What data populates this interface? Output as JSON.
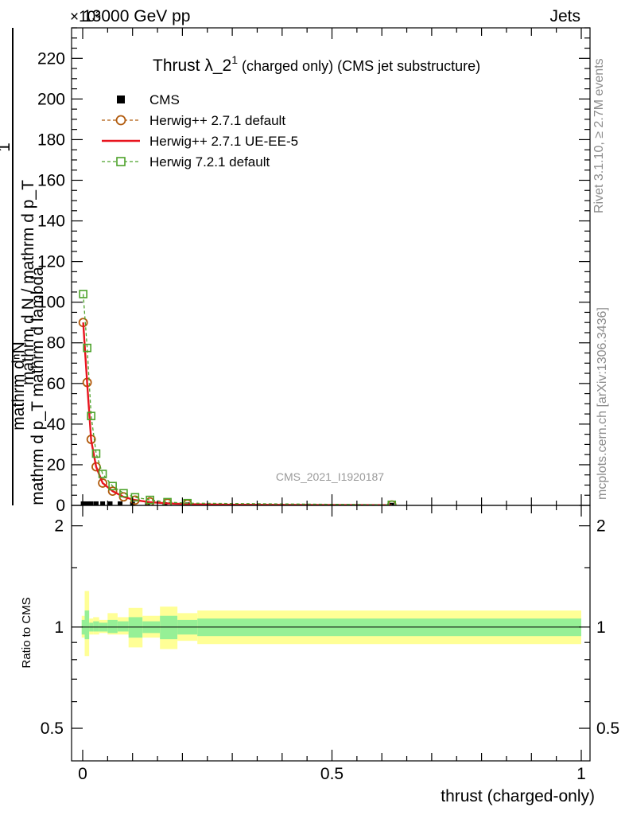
{
  "header": {
    "left": "13000 GeV pp",
    "right": "Jets",
    "multiplier": "×10³"
  },
  "side_labels": {
    "rivet": "Rivet 3.1.10, ≥ 2.7M events",
    "mcplots": "mcplots.cern.ch [arXiv:1306.3436]"
  },
  "chart_data": [
    {
      "type": "line",
      "panel": "main",
      "title": "Thrust λ_2¹ (charged only) (CMS jet substructure)",
      "title_main": "Thrust λ_2",
      "title_sup": "1",
      "title_rest": " (charged only) (CMS jet substructure)",
      "ylabel_top": "1",
      "ylabel_num": "mathrm dⁿN",
      "ylabel_num_sup": "2",
      "ylabel_num_line": "mathrm d p_T mathrm d lambda",
      "ylabel_den": "mathrm d N / mathrm d p_T",
      "watermark": "CMS_2021_I1920187",
      "xlim": [
        0,
        1
      ],
      "ylim": [
        0,
        235
      ],
      "y_ticks": [
        0,
        20,
        40,
        60,
        80,
        100,
        120,
        140,
        160,
        180,
        200,
        220
      ],
      "legend_position": "top-left",
      "legend": [
        {
          "label": "CMS",
          "marker": "square-filled",
          "color": "#000000"
        },
        {
          "label": "Herwig++ 2.7.1 default",
          "marker": "circle-open",
          "color": "#b15a0c",
          "dash": true
        },
        {
          "label": "Herwig++ 2.7.1 UE-EE-5",
          "marker": "none",
          "color": "#e8141e",
          "dash": false
        },
        {
          "label": "Herwig 7.2.1 default",
          "marker": "square-open",
          "color": "#4ca22a",
          "dash": true
        }
      ],
      "series": [
        {
          "name": "CMS",
          "x": [
            0.001,
            0.009,
            0.017,
            0.027,
            0.04,
            0.055,
            0.075,
            0.1,
            0.13,
            0.165,
            0.21,
            0.62
          ],
          "y": [
            0.8,
            0.8,
            0.8,
            0.8,
            0.8,
            0.8,
            0.8,
            0.6,
            0.5,
            0.4,
            0.3,
            0.1
          ]
        },
        {
          "name": "Herwig++ 2.7.1 default",
          "x": [
            0.001,
            0.009,
            0.017,
            0.027,
            0.04,
            0.06,
            0.082,
            0.105,
            0.135,
            0.17,
            0.21,
            0.62
          ],
          "y": [
            90,
            60.5,
            32.5,
            19,
            11,
            7,
            4.2,
            2.6,
            1.7,
            1.1,
            0.7,
            0.2
          ]
        },
        {
          "name": "Herwig++ 2.7.1 UE-EE-5",
          "x": [
            0.001,
            0.009,
            0.017,
            0.027,
            0.04,
            0.06,
            0.082,
            0.105,
            0.135,
            0.17,
            0.21,
            0.3,
            0.62
          ],
          "y": [
            90,
            60,
            32,
            19,
            11,
            7,
            4.2,
            2.6,
            1.6,
            1.0,
            0.6,
            0.3,
            0.1
          ]
        },
        {
          "name": "Herwig 7.2.1 default",
          "x": [
            0.001,
            0.009,
            0.017,
            0.027,
            0.04,
            0.06,
            0.082,
            0.105,
            0.135,
            0.17,
            0.21,
            0.62
          ],
          "y": [
            104,
            77.5,
            44,
            25.5,
            15.5,
            9.5,
            6,
            4,
            2.7,
            1.6,
            1.1,
            0.3
          ]
        }
      ]
    },
    {
      "type": "area",
      "panel": "ratio",
      "ylabel": "Ratio to CMS",
      "xlabel": "thrust (charged-only)",
      "xlim": [
        0,
        1
      ],
      "ylim": [
        0.4,
        2.3
      ],
      "log_y": true,
      "y_ticks": [
        0.5,
        1,
        2
      ],
      "x_ticks": [
        0,
        0.5,
        1
      ],
      "bins": [
        {
          "lo": -0.002,
          "hi": 0.004,
          "stat": [
            0.95,
            1.05
          ],
          "tot": [
            0.93,
            1.08
          ]
        },
        {
          "lo": 0.004,
          "hi": 0.013,
          "stat": [
            0.92,
            1.12
          ],
          "tot": [
            0.82,
            1.28
          ]
        },
        {
          "lo": 0.013,
          "hi": 0.021,
          "stat": [
            0.97,
            1.03
          ],
          "tot": [
            0.95,
            1.06
          ]
        },
        {
          "lo": 0.021,
          "hi": 0.033,
          "stat": [
            0.97,
            1.04
          ],
          "tot": [
            0.95,
            1.07
          ]
        },
        {
          "lo": 0.033,
          "hi": 0.05,
          "stat": [
            0.97,
            1.03
          ],
          "tot": [
            0.96,
            1.05
          ]
        },
        {
          "lo": 0.05,
          "hi": 0.07,
          "stat": [
            0.96,
            1.05
          ],
          "tot": [
            0.95,
            1.1
          ]
        },
        {
          "lo": 0.07,
          "hi": 0.092,
          "stat": [
            0.97,
            1.04
          ],
          "tot": [
            0.95,
            1.07
          ]
        },
        {
          "lo": 0.092,
          "hi": 0.12,
          "stat": [
            0.93,
            1.07
          ],
          "tot": [
            0.87,
            1.14
          ]
        },
        {
          "lo": 0.12,
          "hi": 0.155,
          "stat": [
            0.96,
            1.04
          ],
          "tot": [
            0.93,
            1.08
          ]
        },
        {
          "lo": 0.155,
          "hi": 0.19,
          "stat": [
            0.92,
            1.08
          ],
          "tot": [
            0.86,
            1.15
          ]
        },
        {
          "lo": 0.19,
          "hi": 0.23,
          "stat": [
            0.95,
            1.05
          ],
          "tot": [
            0.91,
            1.1
          ]
        },
        {
          "lo": 0.23,
          "hi": 1.0,
          "stat": [
            0.94,
            1.06
          ],
          "tot": [
            0.89,
            1.12
          ]
        }
      ],
      "colors": {
        "tot": "#ffff96",
        "stat": "#96f096",
        "line": "#000000"
      }
    }
  ]
}
